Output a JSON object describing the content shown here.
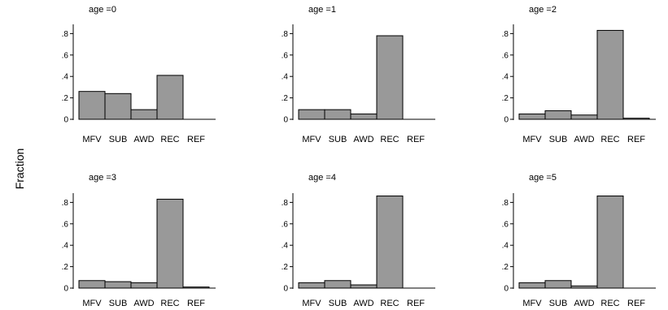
{
  "chart_data": {
    "type": "bar",
    "ylabel": "Fraction",
    "categories": [
      "MFV",
      "SUB",
      "AWD",
      "REC",
      "REF"
    ],
    "yticks": [
      0,
      0.2,
      0.4,
      0.6,
      0.8
    ],
    "ytick_labels": [
      "0",
      ".2",
      ".4",
      ".6",
      ".8"
    ],
    "ylim": [
      0,
      0.9
    ],
    "bar_color": "#999999",
    "grid": false,
    "panels": [
      {
        "title": "age =0",
        "values": [
          0.26,
          0.24,
          0.09,
          0.41,
          0.0
        ]
      },
      {
        "title": "age =1",
        "values": [
          0.09,
          0.09,
          0.05,
          0.78,
          0.0
        ]
      },
      {
        "title": "age =2",
        "values": [
          0.05,
          0.08,
          0.04,
          0.83,
          0.01
        ]
      },
      {
        "title": "age =3",
        "values": [
          0.07,
          0.06,
          0.05,
          0.83,
          0.01
        ]
      },
      {
        "title": "age =4",
        "values": [
          0.05,
          0.07,
          0.03,
          0.86,
          0.0
        ]
      },
      {
        "title": "age =5",
        "values": [
          0.05,
          0.07,
          0.02,
          0.86,
          0.0
        ]
      }
    ]
  }
}
